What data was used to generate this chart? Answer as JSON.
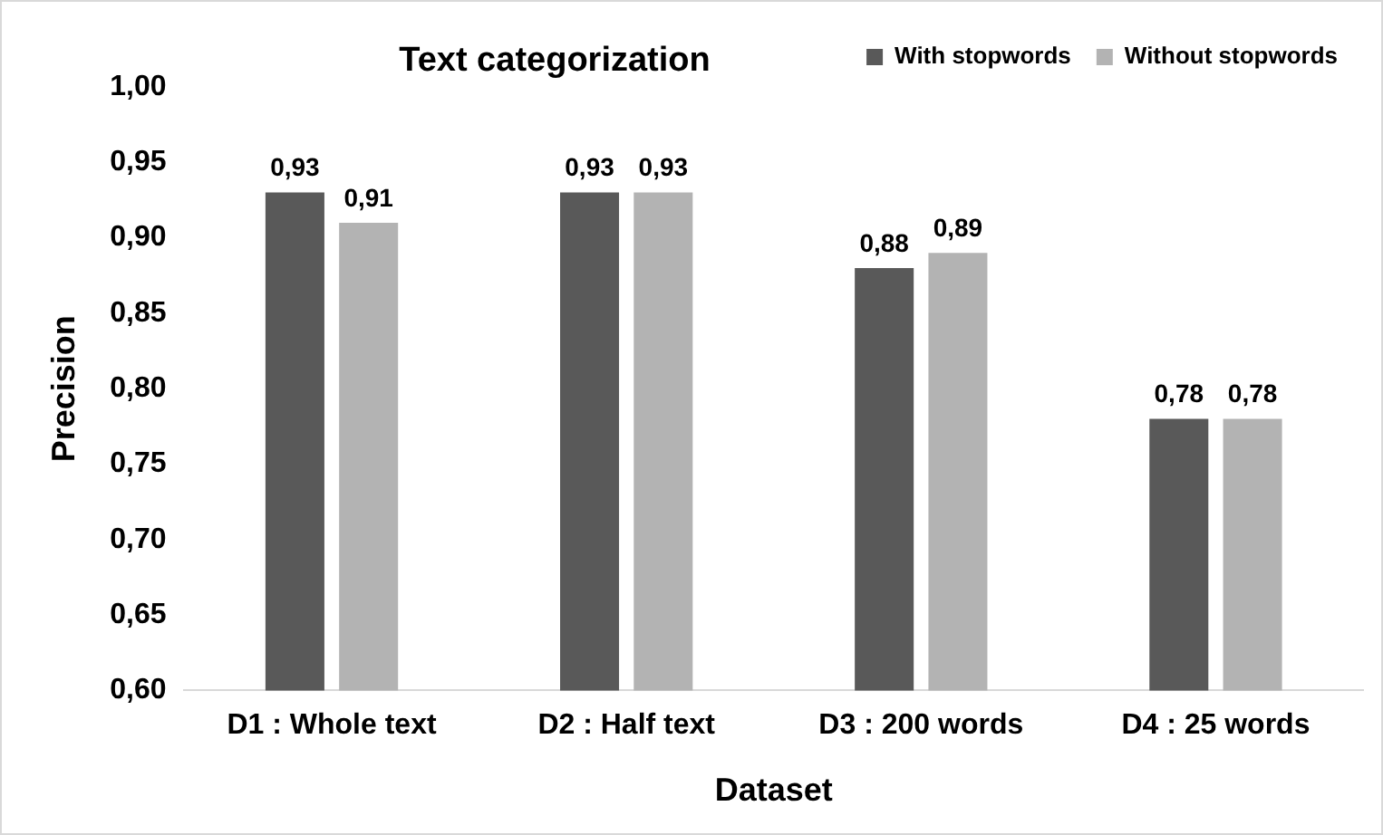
{
  "chart_data": {
    "type": "bar",
    "title": "Text categorization",
    "xlabel": "Dataset",
    "ylabel": "Precision",
    "categories": [
      "D1 : Whole text",
      "D2 : Half text",
      "D3 : 200 words",
      "D4 : 25 words"
    ],
    "series": [
      {
        "name": "With stopwords",
        "color": "#595959",
        "values": [
          0.93,
          0.93,
          0.88,
          0.78
        ],
        "value_labels": [
          "0,93",
          "0,93",
          "0,88",
          "0,78"
        ]
      },
      {
        "name": "Without stopwords",
        "color": "#b3b3b3",
        "values": [
          0.91,
          0.93,
          0.89,
          0.78
        ],
        "value_labels": [
          "0,91",
          "0,93",
          "0,89",
          "0,78"
        ]
      }
    ],
    "ylim": [
      0.6,
      1.0
    ],
    "yticks": [
      {
        "value": 0.6,
        "label": "0,60"
      },
      {
        "value": 0.65,
        "label": "0,65"
      },
      {
        "value": 0.7,
        "label": "0,70"
      },
      {
        "value": 0.75,
        "label": "0,75"
      },
      {
        "value": 0.8,
        "label": "0,80"
      },
      {
        "value": 0.85,
        "label": "0,85"
      },
      {
        "value": 0.9,
        "label": "0,90"
      },
      {
        "value": 0.95,
        "label": "0,95"
      },
      {
        "value": 1.0,
        "label": "1,00"
      }
    ],
    "grid": false,
    "legend": "top right"
  }
}
